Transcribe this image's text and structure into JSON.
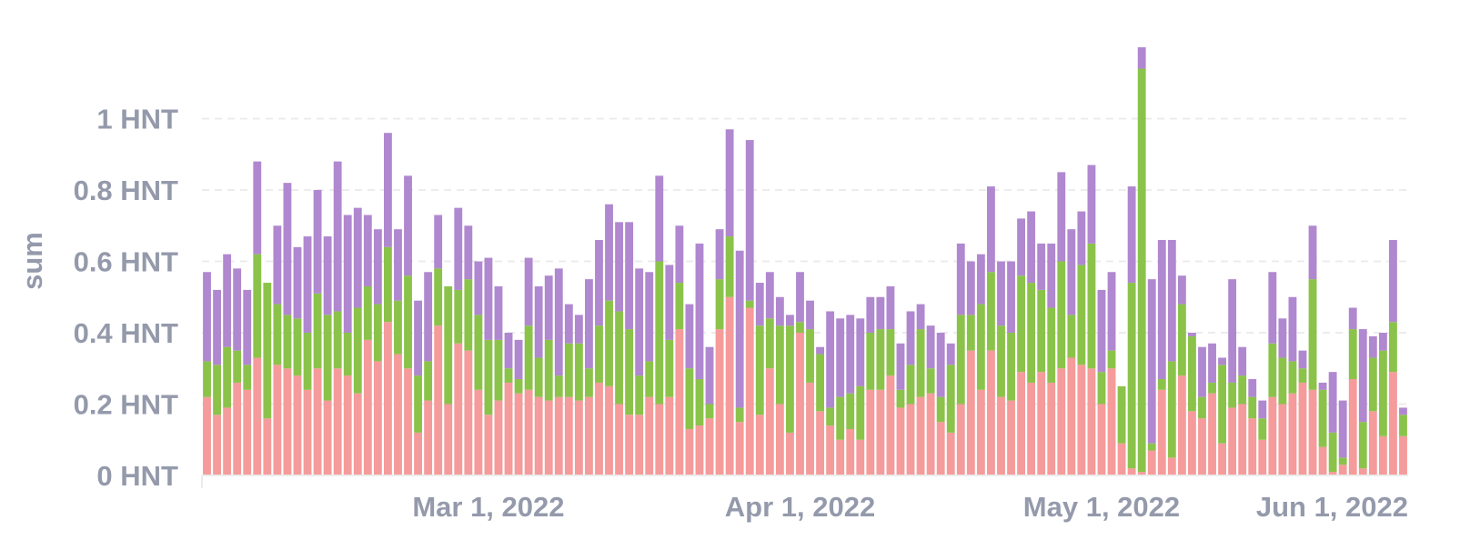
{
  "chart_data": {
    "type": "bar",
    "stacked": true,
    "title": "",
    "xlabel": "",
    "ylabel": "sum",
    "ylim": [
      0,
      1.2
    ],
    "y_ticks": [
      {
        "value": 0,
        "label": "0 HNT"
      },
      {
        "value": 0.2,
        "label": "0.2 HNT"
      },
      {
        "value": 0.4,
        "label": "0.4 HNT"
      },
      {
        "value": 0.6,
        "label": "0.6 HNT"
      },
      {
        "value": 0.8,
        "label": "0.8 HNT"
      },
      {
        "value": 1,
        "label": "1 HNT"
      }
    ],
    "x_ticks": [
      {
        "date": "2022-03-01",
        "label": "Mar 1, 2022"
      },
      {
        "date": "2022-04-01",
        "label": "Apr 1, 2022"
      },
      {
        "date": "2022-05-01",
        "label": "May 1, 2022"
      },
      {
        "date": "2022-06-01",
        "label": "Jun 1, 2022"
      }
    ],
    "x_start": "2022-02-01",
    "grid": true,
    "legend": "none",
    "colors": [
      "#f59b9b",
      "#8bc34a",
      "#b088cf"
    ],
    "values": [
      [
        0.22,
        0.1,
        0.25
      ],
      [
        0.17,
        0.14,
        0.21
      ],
      [
        0.19,
        0.17,
        0.26
      ],
      [
        0.26,
        0.09,
        0.23
      ],
      [
        0.24,
        0.07,
        0.21
      ],
      [
        0.33,
        0.29,
        0.26
      ],
      [
        0.16,
        0.38,
        0.0
      ],
      [
        0.31,
        0.17,
        0.22
      ],
      [
        0.3,
        0.15,
        0.37
      ],
      [
        0.28,
        0.16,
        0.2
      ],
      [
        0.24,
        0.16,
        0.27
      ],
      [
        0.3,
        0.21,
        0.29
      ],
      [
        0.21,
        0.24,
        0.22
      ],
      [
        0.3,
        0.16,
        0.42
      ],
      [
        0.28,
        0.12,
        0.33
      ],
      [
        0.23,
        0.24,
        0.28
      ],
      [
        0.38,
        0.15,
        0.2
      ],
      [
        0.32,
        0.16,
        0.21
      ],
      [
        0.43,
        0.21,
        0.32
      ],
      [
        0.34,
        0.15,
        0.2
      ],
      [
        0.3,
        0.26,
        0.28
      ],
      [
        0.12,
        0.16,
        0.21
      ],
      [
        0.21,
        0.11,
        0.25
      ],
      [
        0.42,
        0.16,
        0.15
      ],
      [
        0.2,
        0.33,
        0.0
      ],
      [
        0.37,
        0.15,
        0.23
      ],
      [
        0.35,
        0.2,
        0.15
      ],
      [
        0.24,
        0.21,
        0.15
      ],
      [
        0.17,
        0.21,
        0.23
      ],
      [
        0.21,
        0.17,
        0.15
      ],
      [
        0.26,
        0.04,
        0.1
      ],
      [
        0.23,
        0.04,
        0.11
      ],
      [
        0.24,
        0.18,
        0.19
      ],
      [
        0.22,
        0.11,
        0.2
      ],
      [
        0.21,
        0.17,
        0.18
      ],
      [
        0.22,
        0.06,
        0.3
      ],
      [
        0.22,
        0.15,
        0.11
      ],
      [
        0.21,
        0.16,
        0.08
      ],
      [
        0.22,
        0.08,
        0.25
      ],
      [
        0.26,
        0.16,
        0.24
      ],
      [
        0.25,
        0.24,
        0.27
      ],
      [
        0.2,
        0.26,
        0.25
      ],
      [
        0.17,
        0.24,
        0.3
      ],
      [
        0.17,
        0.11,
        0.3
      ],
      [
        0.22,
        0.1,
        0.25
      ],
      [
        0.2,
        0.4,
        0.24
      ],
      [
        0.22,
        0.16,
        0.21
      ],
      [
        0.41,
        0.13,
        0.16
      ],
      [
        0.13,
        0.17,
        0.18
      ],
      [
        0.14,
        0.13,
        0.38
      ],
      [
        0.16,
        0.04,
        0.16
      ],
      [
        0.41,
        0.14,
        0.14
      ],
      [
        0.5,
        0.17,
        0.3
      ],
      [
        0.15,
        0.04,
        0.44
      ],
      [
        0.47,
        0.02,
        0.45
      ],
      [
        0.17,
        0.25,
        0.12
      ],
      [
        0.3,
        0.14,
        0.13
      ],
      [
        0.2,
        0.22,
        0.08
      ],
      [
        0.12,
        0.3,
        0.03
      ],
      [
        0.4,
        0.03,
        0.14
      ],
      [
        0.26,
        0.15,
        0.08
      ],
      [
        0.18,
        0.16,
        0.02
      ],
      [
        0.14,
        0.05,
        0.27
      ],
      [
        0.1,
        0.12,
        0.22
      ],
      [
        0.13,
        0.1,
        0.22
      ],
      [
        0.1,
        0.15,
        0.19
      ],
      [
        0.24,
        0.16,
        0.1
      ],
      [
        0.24,
        0.17,
        0.09
      ],
      [
        0.28,
        0.13,
        0.12
      ],
      [
        0.19,
        0.05,
        0.13
      ],
      [
        0.2,
        0.11,
        0.15
      ],
      [
        0.22,
        0.19,
        0.07
      ],
      [
        0.23,
        0.07,
        0.12
      ],
      [
        0.15,
        0.07,
        0.18
      ],
      [
        0.12,
        0.19,
        0.06
      ],
      [
        0.2,
        0.25,
        0.2
      ],
      [
        0.35,
        0.1,
        0.15
      ],
      [
        0.24,
        0.24,
        0.14
      ],
      [
        0.35,
        0.22,
        0.24
      ],
      [
        0.22,
        0.2,
        0.18
      ],
      [
        0.21,
        0.19,
        0.2
      ],
      [
        0.29,
        0.27,
        0.16
      ],
      [
        0.26,
        0.28,
        0.2
      ],
      [
        0.29,
        0.23,
        0.13
      ],
      [
        0.26,
        0.21,
        0.18
      ],
      [
        0.3,
        0.3,
        0.25
      ],
      [
        0.33,
        0.12,
        0.24
      ],
      [
        0.31,
        0.28,
        0.15
      ],
      [
        0.3,
        0.35,
        0.22
      ],
      [
        0.2,
        0.09,
        0.23
      ],
      [
        0.3,
        0.05,
        0.22
      ],
      [
        0.09,
        0.16,
        0.0
      ],
      [
        0.02,
        0.52,
        0.27
      ],
      [
        0.01,
        1.13,
        0.06
      ],
      [
        0.07,
        0.02,
        0.46
      ],
      [
        0.24,
        0.03,
        0.39
      ],
      [
        0.05,
        0.27,
        0.34
      ],
      [
        0.28,
        0.2,
        0.08
      ],
      [
        0.18,
        0.21,
        0.01
      ],
      [
        0.16,
        0.06,
        0.14
      ],
      [
        0.23,
        0.03,
        0.11
      ],
      [
        0.09,
        0.22,
        0.02
      ],
      [
        0.19,
        0.07,
        0.29
      ],
      [
        0.2,
        0.08,
        0.08
      ],
      [
        0.16,
        0.06,
        0.05
      ],
      [
        0.1,
        0.06,
        0.05
      ],
      [
        0.22,
        0.15,
        0.2
      ],
      [
        0.2,
        0.13,
        0.11
      ],
      [
        0.23,
        0.09,
        0.18
      ],
      [
        0.26,
        0.04,
        0.05
      ],
      [
        0.24,
        0.31,
        0.15
      ],
      [
        0.08,
        0.16,
        0.02
      ],
      [
        0.01,
        0.11,
        0.17
      ],
      [
        0.03,
        0.02,
        0.16
      ],
      [
        0.27,
        0.14,
        0.06
      ],
      [
        0.02,
        0.13,
        0.26
      ],
      [
        0.18,
        0.15,
        0.06
      ],
      [
        0.11,
        0.24,
        0.05
      ],
      [
        0.29,
        0.14,
        0.23
      ],
      [
        0.11,
        0.06,
        0.02
      ]
    ]
  }
}
